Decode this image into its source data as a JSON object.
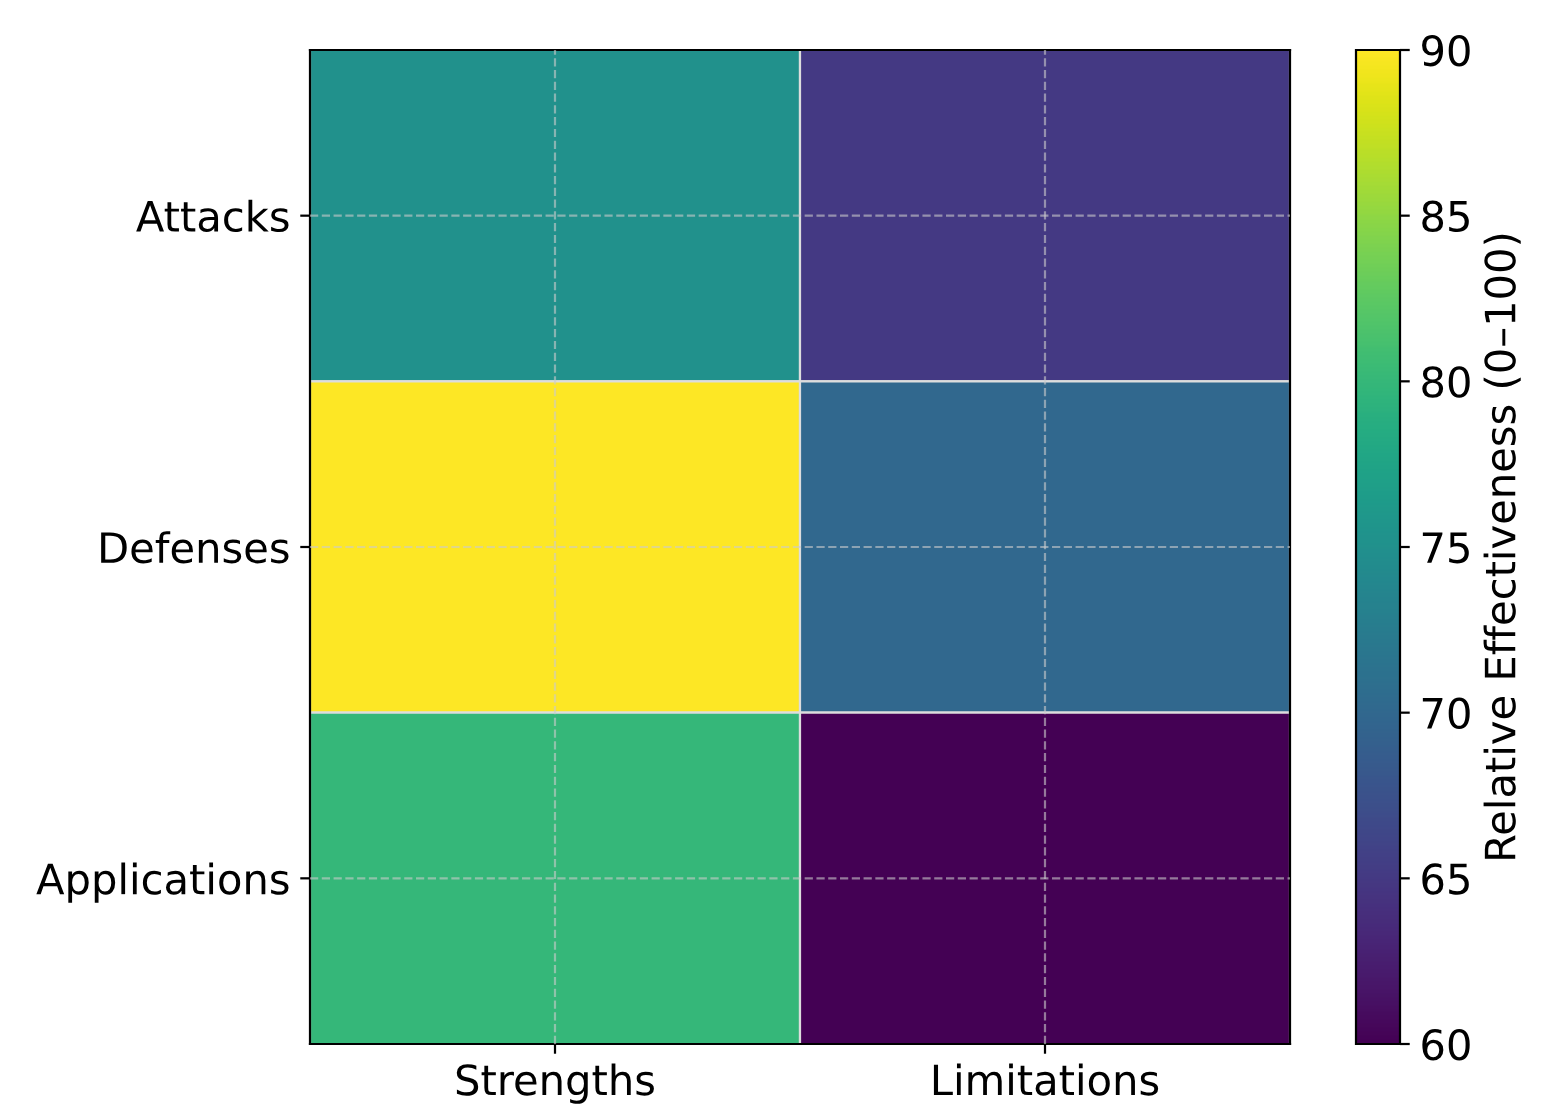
{
  "chart_data": {
    "type": "heatmap",
    "categories": [
      "Strengths",
      "Limitations"
    ],
    "y_categories": [
      "Attacks",
      "Defenses",
      "Applications"
    ],
    "cells": [
      [
        75,
        65
      ],
      [
        90,
        70
      ],
      [
        80,
        60
      ]
    ],
    "clim": [
      60,
      90
    ],
    "cticks": [
      60,
      65,
      70,
      75,
      80,
      85,
      90
    ],
    "clabel": "Relative Effectiveness (0–100)",
    "grid": true
  }
}
